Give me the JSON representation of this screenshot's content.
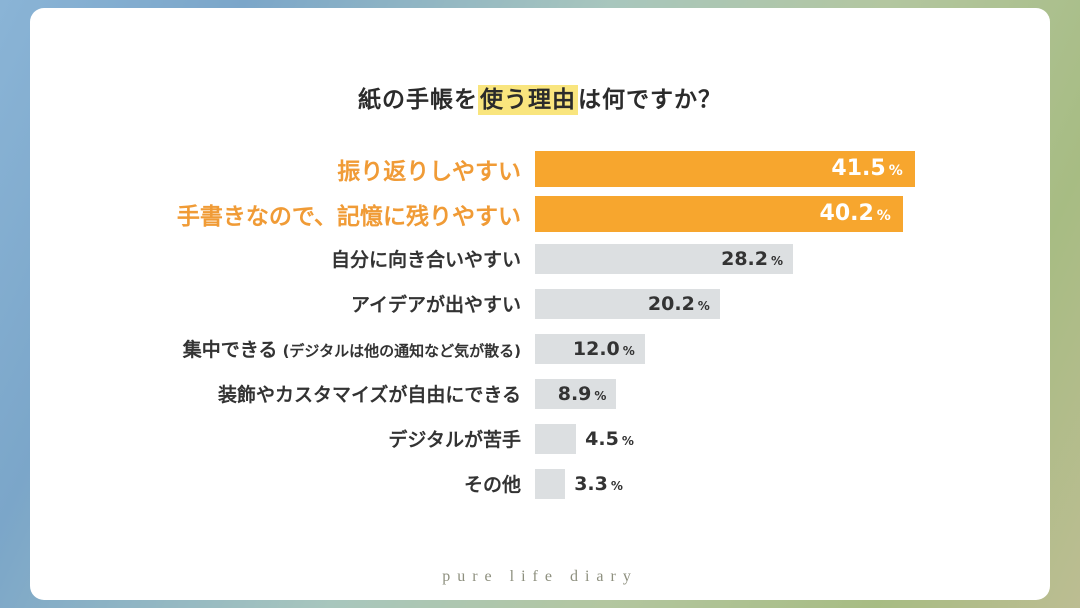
{
  "title": {
    "pre": "紙の手帳を",
    "highlight": "使う理由",
    "post": "は何ですか？"
  },
  "chart_data": {
    "type": "bar",
    "orientation": "horizontal",
    "title": "紙の手帳を使う理由は何ですか？",
    "unit": "%",
    "xlim": [
      0,
      45
    ],
    "categories": [
      "振り返りしやすい",
      "手書きなので、記憶に残りやすい",
      "自分に向き合いやすい",
      "アイデアが出やすい",
      "集中できる (デジタルは他の通知など気が散る)",
      "装飾やカスタマイズが自由にできる",
      "デジタルが苦手",
      "その他"
    ],
    "values": [
      41.5,
      40.2,
      28.2,
      20.2,
      12.0,
      8.9,
      4.5,
      3.3
    ],
    "bars": [
      {
        "label": "振り返りしやすい",
        "value": 41.5,
        "value_label": "41.5",
        "emphasis": true,
        "value_inside": true
      },
      {
        "label": "手書きなので、記憶に残りやすい",
        "value": 40.2,
        "value_label": "40.2",
        "emphasis": true,
        "value_inside": true
      },
      {
        "label": "自分に向き合いやすい",
        "value": 28.2,
        "value_label": "28.2",
        "emphasis": false,
        "value_inside": true
      },
      {
        "label": "アイデアが出やすい",
        "value": 20.2,
        "value_label": "20.2",
        "emphasis": false,
        "value_inside": true
      },
      {
        "label": "集中できる",
        "label_sub": "(デジタルは他の通知など気が散る)",
        "value": 12.0,
        "value_label": "12.0",
        "emphasis": false,
        "value_inside": true
      },
      {
        "label": "装飾やカスタマイズが自由にできる",
        "value": 8.9,
        "value_label": "8.9",
        "emphasis": false,
        "value_inside": true
      },
      {
        "label": "デジタルが苦手",
        "value": 4.5,
        "value_label": "4.5",
        "emphasis": false,
        "value_inside": false
      },
      {
        "label": "その他",
        "value": 3.3,
        "value_label": "3.3",
        "emphasis": false,
        "value_inside": false
      }
    ],
    "colors": {
      "bar_emphasis": "#F7A62E",
      "bar_default": "#DCDFE1",
      "label_emphasis": "#F09B36",
      "label_default": "#333333",
      "value_on_emphasis": "#FFFFFF",
      "value_default": "#333333",
      "title_highlight": "#F9E57E",
      "card_background": "#FFFFFF",
      "footer_text": "#8E907F"
    },
    "legend": "none",
    "grid": false
  },
  "footer": {
    "brand": "pure life diary"
  }
}
